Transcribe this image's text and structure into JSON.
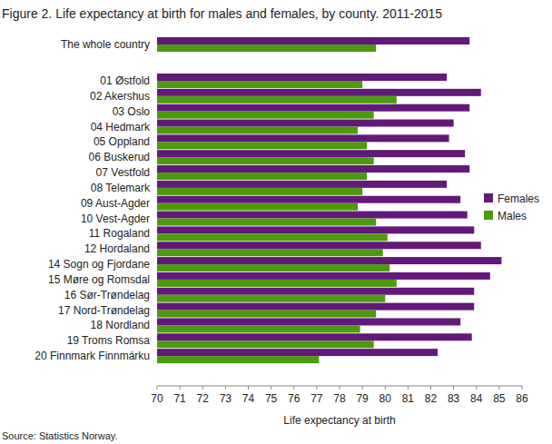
{
  "chart_data": {
    "type": "bar",
    "orientation": "horizontal",
    "title": "Figure 2. Life expectancy at birth for males and females, by county. 2011-2015",
    "x_label": "Life expectancy at birth",
    "source": "Source: Statistics Norway.",
    "categories": [
      "The whole country",
      "01 Østfold",
      "02 Akershus",
      "03 Oslo",
      "04 Hedmark",
      "05 Oppland",
      "06 Buskerud",
      "07 Vestfold",
      "08 Telemark",
      "09 Aust-Agder",
      "10 Vest-Agder",
      "11 Rogaland",
      "12 Hordaland",
      "14 Sogn og Fjordane",
      "15 Møre og Romsdal",
      "16 Sør-Trøndelag",
      "17 Nord-Trøndelag",
      "18 Nordland",
      "19 Troms Romsa",
      "20 Finnmark Finnmárku"
    ],
    "series": [
      {
        "name": "Females",
        "color": "#62197a",
        "values": [
          83.7,
          82.7,
          84.2,
          83.7,
          83.0,
          82.8,
          83.5,
          83.7,
          82.7,
          83.3,
          83.6,
          83.9,
          84.2,
          85.1,
          84.6,
          83.9,
          83.9,
          83.3,
          83.8,
          82.3
        ]
      },
      {
        "name": "Males",
        "color": "#4e9a0e",
        "values": [
          79.6,
          79.0,
          80.5,
          79.5,
          78.8,
          79.2,
          79.5,
          79.2,
          79.0,
          78.8,
          79.6,
          80.1,
          79.9,
          80.2,
          80.5,
          80.0,
          79.6,
          78.9,
          79.5,
          77.1
        ]
      }
    ],
    "xlim": [
      70,
      86
    ],
    "xticks": [
      70,
      71,
      72,
      73,
      74,
      75,
      76,
      77,
      78,
      79,
      80,
      81,
      82,
      83,
      84,
      85,
      86
    ],
    "grid": false,
    "legend": "right"
  }
}
